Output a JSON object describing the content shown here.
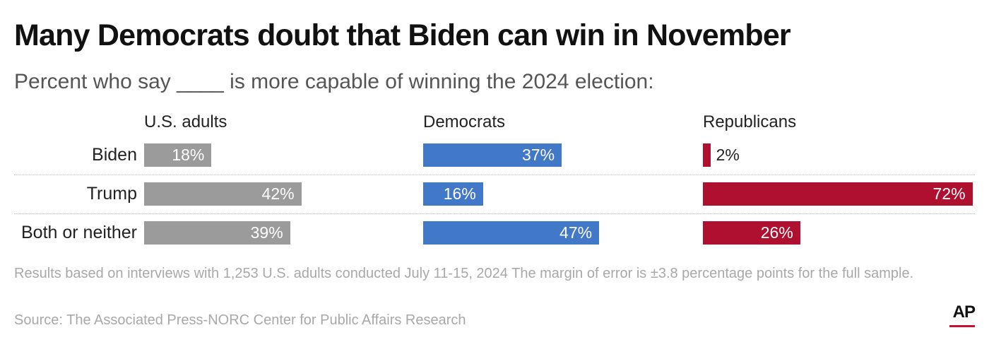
{
  "title": "Many Democrats doubt that Biden can win in November",
  "subtitle": "Percent who say ____ is more capable of winning the 2024 election:",
  "note": "Results based on interviews with 1,253 U.S. adults conducted July 11-15, 2024 The margin of error is ±3.8 percentage points for the full sample.",
  "source": "Source: The Associated Press-NORC Center for Public Affairs Research",
  "logo": "AP",
  "chart_data": {
    "type": "bar",
    "orientation": "horizontal",
    "categories": [
      "Biden",
      "Trump",
      "Both or neither"
    ],
    "unit": "%",
    "scale_max": 100,
    "series": [
      {
        "name": "U.S. adults",
        "color": "#9b9b9b",
        "values": [
          18,
          42,
          39
        ],
        "labels": [
          "18%",
          "42%",
          "39%"
        ]
      },
      {
        "name": "Democrats",
        "color": "#4178c8",
        "values": [
          37,
          16,
          47
        ],
        "labels": [
          "37%",
          "16%",
          "47%"
        ]
      },
      {
        "name": "Republicans",
        "color": "#b01030",
        "values": [
          2,
          72,
          26
        ],
        "labels": [
          "2%",
          "72%",
          "26%"
        ]
      }
    ]
  }
}
